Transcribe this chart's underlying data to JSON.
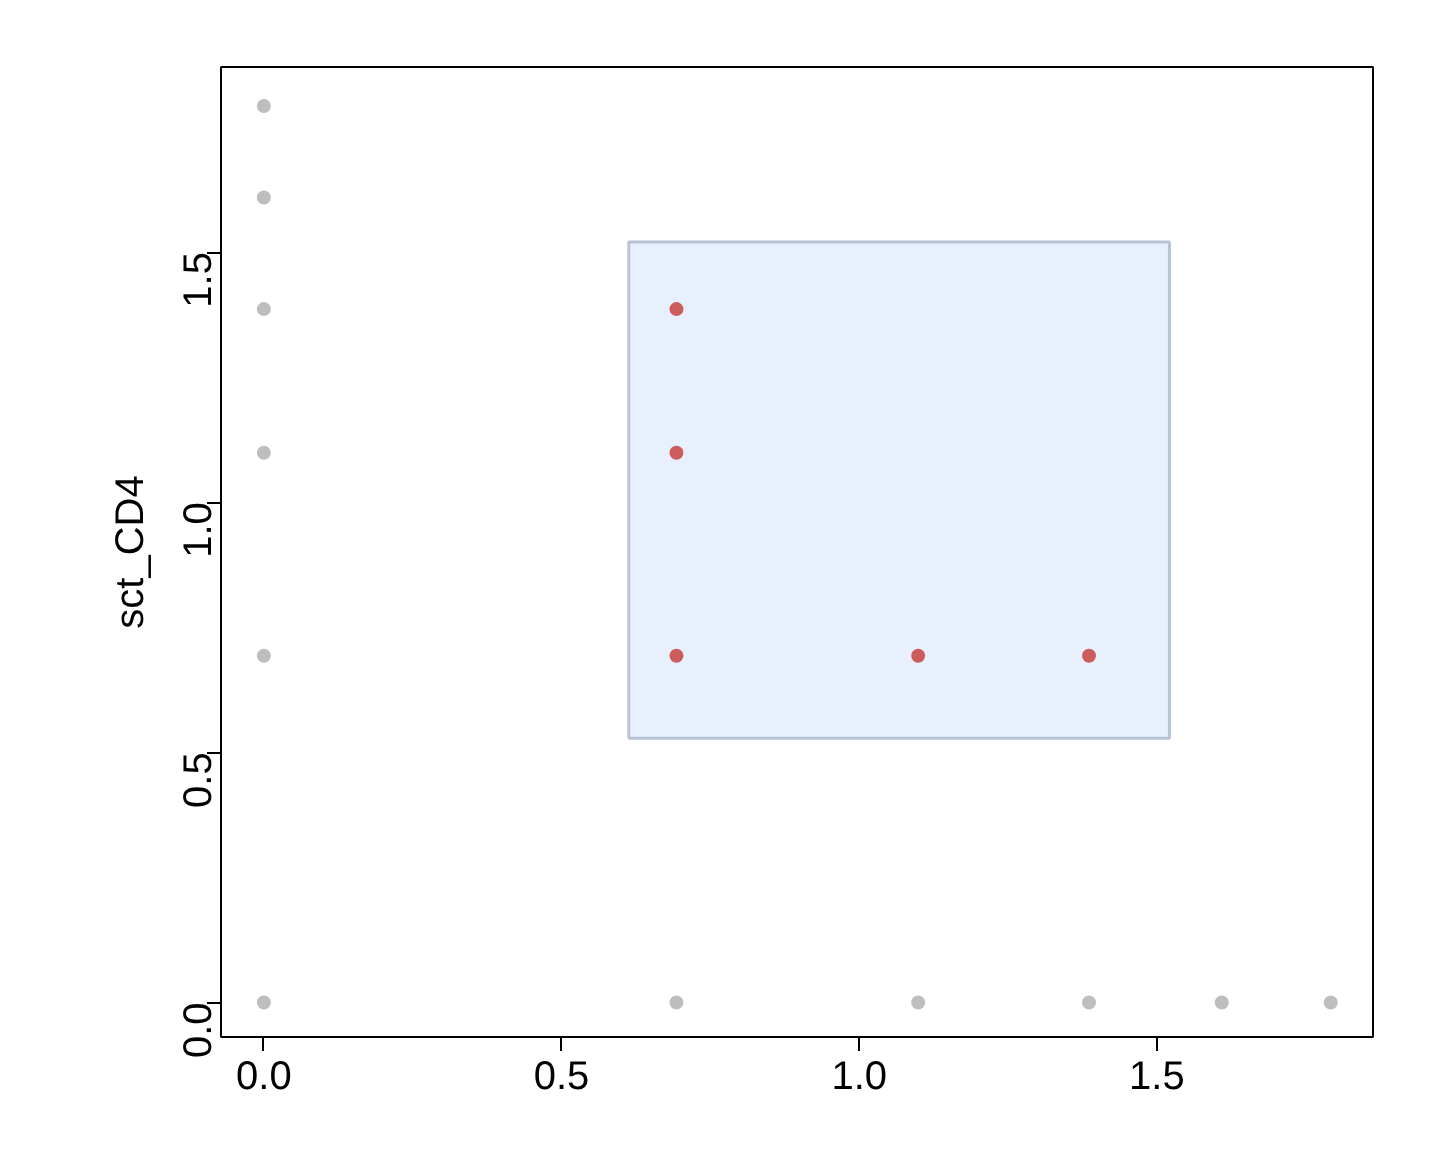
{
  "chart_data": {
    "type": "scatter",
    "ylabel": "sct_CD4",
    "xlim": [
      -0.072,
      1.863
    ],
    "ylim": [
      -0.069,
      1.87
    ],
    "xticks": [
      {
        "value": 0,
        "label": "0.0"
      },
      {
        "value": 0.5,
        "label": "0.5"
      },
      {
        "value": 1,
        "label": "1.0"
      },
      {
        "value": 1.5,
        "label": "1.5"
      }
    ],
    "yticks": [
      {
        "value": 0,
        "label": "0.0"
      },
      {
        "value": 0.5,
        "label": "0.5"
      },
      {
        "value": 1,
        "label": "1.0"
      },
      {
        "value": 1.5,
        "label": "1.5"
      }
    ],
    "marker": "circle",
    "grid": false,
    "series": [
      {
        "type": "area",
        "color": "#e9f0fd",
        "x": [
          0.613,
          1.521
        ],
        "values": [
          null,
          null
        ],
        "lower": [
          0.528,
          0.528
        ],
        "upper": [
          1.52,
          1.52
        ]
      },
      {
        "color": "#bebebe",
        "x": [
          0,
          0,
          0,
          0,
          0,
          0,
          0.693,
          1.099,
          1.386,
          1.609,
          1.792
        ],
        "values": [
          1.792,
          1.609,
          1.386,
          1.099,
          0.693,
          0,
          0,
          0,
          0,
          0,
          0
        ]
      },
      {
        "color": "#cd5c5c",
        "x": [
          0.693,
          0.693,
          0.693,
          1.099,
          1.386
        ],
        "values": [
          1.386,
          1.099,
          0.693,
          0.693,
          0.693
        ]
      }
    ]
  }
}
